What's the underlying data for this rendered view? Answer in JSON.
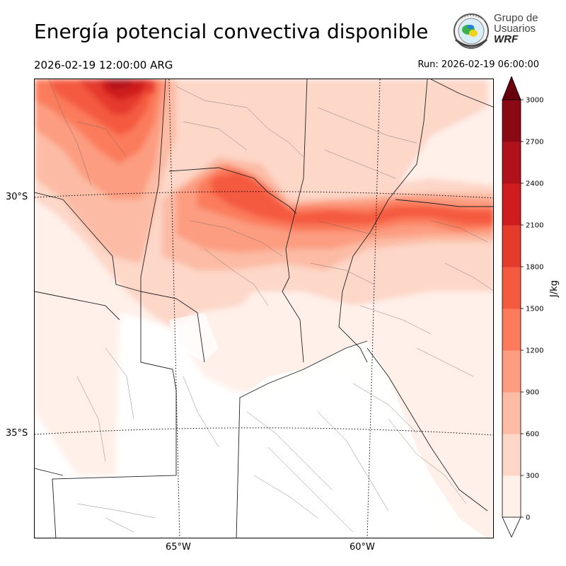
{
  "title": "Energía potencial convectiva disponible",
  "valid_time": "2026-02-19 12:00:00 ARG",
  "run_time": "Run: 2026-02-19 06:00:00",
  "logo": {
    "line1": "Grupo de",
    "line2": "Usuarios",
    "line3": "WRF"
  },
  "map": {
    "lat_labels": [
      "30°S",
      "35°S"
    ],
    "lon_labels": [
      "65°W",
      "60°W"
    ]
  },
  "colorbar": {
    "units": "J/kg",
    "ticks": [
      "0",
      "300",
      "600",
      "900",
      "1200",
      "1500",
      "1800",
      "2100",
      "2400",
      "2700",
      "3000"
    ],
    "colors": [
      "#fff0ea",
      "#fdd7c8",
      "#fcbba4",
      "#fc9c80",
      "#fb7b5c",
      "#f45a40",
      "#e53b2d",
      "#cf1c1e",
      "#b0121b",
      "#8b0914"
    ],
    "over_color": "#67000d",
    "under_color": "#ffffff"
  }
}
